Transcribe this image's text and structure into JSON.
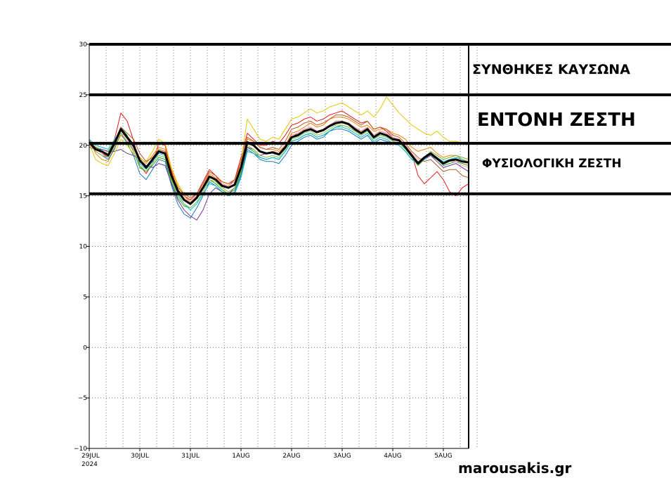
{
  "chart_data": {
    "type": "line",
    "title": "",
    "xlabel": "",
    "ylabel": "",
    "ylim": [
      -10,
      30
    ],
    "yticks": [
      -10,
      -5,
      0,
      5,
      10,
      15,
      20,
      25,
      30
    ],
    "ytick_labels": [
      "−10",
      "−5",
      "0",
      "5",
      "10",
      "15",
      "20",
      "25",
      "30"
    ],
    "xlim": [
      0,
      7.5
    ],
    "x_ticks": [
      {
        "x": 0,
        "label": "29JUL",
        "sub": "2024"
      },
      {
        "x": 1,
        "label": "30JUL",
        "sub": ""
      },
      {
        "x": 2,
        "label": "31JUL",
        "sub": ""
      },
      {
        "x": 3,
        "label": "1AUG",
        "sub": ""
      },
      {
        "x": 4,
        "label": "2AUG",
        "sub": ""
      },
      {
        "x": 5,
        "label": "3AUG",
        "sub": ""
      },
      {
        "x": 6,
        "label": "4AUG",
        "sub": ""
      },
      {
        "x": 7,
        "label": "5AUG",
        "sub": ""
      }
    ],
    "grid": true,
    "zones": [
      {
        "label": "ΣΥΝΘΗΚΕΣ ΚΑΥΣΩΝΑ",
        "from": 25,
        "to": 30
      },
      {
        "label": "ΕΝΤΟΝΗ ΖΕΣΤΗ",
        "from": 20.2,
        "to": 25
      },
      {
        "label": "ΦΥΣΙΟΛΟΓΙΚΗ ΖΕΣΤΗ",
        "from": 15.2,
        "to": 20.2
      }
    ],
    "threshold_lines": [
      30,
      25,
      20.2,
      15.2
    ],
    "series": [
      {
        "name": "ensemble-mean",
        "x": [
          0,
          0.125,
          0.25,
          0.375,
          0.5,
          0.625,
          0.75,
          0.875,
          1.0,
          1.125,
          1.25,
          1.375,
          1.5,
          1.625,
          1.75,
          1.875,
          2.0,
          2.125,
          2.25,
          2.375,
          2.5,
          2.625,
          2.75,
          2.875,
          3.0,
          3.125,
          3.25,
          3.375,
          3.5,
          3.625,
          3.75,
          3.875,
          4.0,
          4.125,
          4.25,
          4.375,
          4.5,
          4.625,
          4.75,
          4.875,
          5.0,
          5.125,
          5.25,
          5.375,
          5.5,
          5.625,
          5.75,
          5.875,
          6.0,
          6.125,
          6.25,
          6.375,
          6.5,
          6.625,
          6.75,
          6.875,
          7.0,
          7.125,
          7.25,
          7.375,
          7.5
        ],
        "values": [
          20.3,
          19.6,
          19.4,
          19.0,
          20.2,
          21.6,
          20.8,
          20.0,
          18.5,
          17.8,
          18.6,
          19.4,
          19.2,
          17.0,
          15.5,
          14.6,
          14.2,
          14.8,
          15.8,
          16.9,
          16.6,
          16.0,
          15.8,
          16.1,
          17.8,
          20.3,
          20.0,
          19.4,
          19.2,
          19.3,
          19.1,
          19.8,
          20.8,
          21.0,
          21.4,
          21.6,
          21.3,
          21.5,
          21.9,
          22.2,
          22.3,
          22.1,
          21.6,
          21.2,
          21.6,
          20.8,
          21.2,
          21.0,
          20.6,
          20.5,
          19.8,
          19.0,
          18.2,
          18.8,
          19.2,
          18.7,
          18.2,
          18.5,
          18.6,
          18.4,
          18.3
        ],
        "color": "#000000",
        "width": 3
      },
      {
        "name": "member-1",
        "color": "#e31a1c",
        "values": [
          20.0,
          19.8,
          19.2,
          18.8,
          20.6,
          23.2,
          22.4,
          20.5,
          18.0,
          17.2,
          18.2,
          20.2,
          20.0,
          17.4,
          15.6,
          15.0,
          14.6,
          15.2,
          16.4,
          17.6,
          17.0,
          16.2,
          16.0,
          16.6,
          18.8,
          21.2,
          20.6,
          20.0,
          20.0,
          20.4,
          20.2,
          21.0,
          22.0,
          22.2,
          22.6,
          22.8,
          22.4,
          22.6,
          23.0,
          23.2,
          23.4,
          23.0,
          22.6,
          22.2,
          22.4,
          21.6,
          21.8,
          21.4,
          20.8,
          20.6,
          20.0,
          19.2,
          17.0,
          16.2,
          16.8,
          17.4,
          16.6,
          15.4,
          15.0,
          15.8,
          16.2
        ]
      },
      {
        "name": "member-2",
        "color": "#ff7f00",
        "values": [
          20.6,
          19.2,
          18.6,
          18.4,
          19.8,
          21.0,
          20.4,
          19.6,
          18.8,
          18.2,
          19.0,
          19.8,
          19.6,
          17.6,
          16.0,
          15.0,
          14.4,
          15.0,
          16.0,
          17.2,
          16.8,
          16.4,
          16.2,
          16.6,
          18.0,
          20.6,
          20.4,
          19.8,
          19.6,
          19.6,
          19.4,
          20.0,
          21.2,
          21.4,
          21.8,
          22.2,
          21.8,
          22.0,
          22.6,
          22.8,
          22.8,
          22.6,
          22.2,
          21.8,
          22.0,
          21.4,
          21.6,
          21.6,
          21.2,
          21.0,
          20.6,
          19.8,
          19.4,
          19.6,
          19.8,
          19.2,
          18.8,
          19.0,
          19.0,
          18.6,
          18.4
        ]
      },
      {
        "name": "member-3",
        "color": "#33a02c",
        "values": [
          20.4,
          19.8,
          19.6,
          19.4,
          20.4,
          21.8,
          21.0,
          19.4,
          17.8,
          17.4,
          18.0,
          18.8,
          18.6,
          16.4,
          14.8,
          14.0,
          13.8,
          14.4,
          15.4,
          16.6,
          16.2,
          15.6,
          15.2,
          15.6,
          17.2,
          19.8,
          19.4,
          18.8,
          18.6,
          18.8,
          18.6,
          19.4,
          20.4,
          20.6,
          21.0,
          21.2,
          20.8,
          21.0,
          21.4,
          21.8,
          22.0,
          21.8,
          21.4,
          21.0,
          21.4,
          20.6,
          21.0,
          20.8,
          20.4,
          20.2,
          19.6,
          18.8,
          18.0,
          18.6,
          19.0,
          18.6,
          18.0,
          18.2,
          18.4,
          18.2,
          18.0
        ]
      },
      {
        "name": "member-4",
        "color": "#1f78b4",
        "values": [
          20.2,
          19.4,
          19.0,
          18.6,
          19.6,
          21.2,
          20.2,
          19.0,
          17.2,
          16.6,
          17.6,
          18.6,
          18.4,
          16.0,
          14.2,
          13.2,
          12.8,
          13.8,
          15.0,
          16.4,
          16.0,
          15.4,
          15.0,
          15.4,
          17.0,
          19.6,
          19.2,
          18.6,
          18.4,
          18.4,
          18.2,
          19.0,
          20.0,
          20.4,
          20.8,
          21.0,
          20.6,
          20.8,
          21.4,
          21.6,
          21.6,
          21.4,
          21.0,
          20.6,
          21.0,
          20.2,
          20.6,
          20.4,
          20.2,
          20.0,
          19.4,
          18.6,
          18.4,
          18.8,
          19.4,
          19.0,
          18.6,
          18.8,
          19.0,
          18.8,
          18.6
        ]
      },
      {
        "name": "member-5",
        "color": "#6a3d9a",
        "values": [
          19.8,
          19.6,
          19.6,
          19.4,
          19.4,
          19.6,
          19.2,
          19.0,
          18.6,
          18.0,
          17.8,
          18.2,
          18.0,
          16.2,
          14.6,
          13.6,
          13.0,
          12.6,
          13.6,
          15.2,
          15.8,
          15.4,
          15.2,
          15.8,
          17.4,
          19.8,
          19.6,
          19.0,
          19.2,
          19.4,
          19.2,
          19.8,
          20.8,
          21.2,
          21.6,
          21.8,
          21.4,
          21.6,
          22.0,
          22.4,
          22.4,
          22.2,
          21.8,
          21.4,
          21.8,
          21.0,
          21.4,
          21.2,
          20.8,
          20.4,
          19.8,
          19.0,
          18.4,
          18.6,
          19.0,
          18.4,
          17.8,
          18.0,
          18.2,
          17.8,
          17.4
        ]
      },
      {
        "name": "member-6",
        "color": "#e6c800",
        "values": [
          20.2,
          18.6,
          18.2,
          18.0,
          19.2,
          20.6,
          20.0,
          19.2,
          18.6,
          18.4,
          19.4,
          20.6,
          20.2,
          17.8,
          16.2,
          15.2,
          14.8,
          15.2,
          16.0,
          17.0,
          16.8,
          16.2,
          16.0,
          16.4,
          18.4,
          22.6,
          21.6,
          20.6,
          20.4,
          20.8,
          20.6,
          21.6,
          22.6,
          22.8,
          23.2,
          23.6,
          23.2,
          23.4,
          23.8,
          24.0,
          24.2,
          23.8,
          23.4,
          23.0,
          23.4,
          22.8,
          23.6,
          24.8,
          24.0,
          23.2,
          22.6,
          22.0,
          21.6,
          21.2,
          21.0,
          21.4,
          20.8,
          20.4,
          20.4,
          20.2,
          20.2
        ]
      },
      {
        "name": "member-7",
        "color": "#b15928",
        "values": [
          20.4,
          19.8,
          19.4,
          19.2,
          20.4,
          21.8,
          21.2,
          20.6,
          19.2,
          18.4,
          18.8,
          19.6,
          19.4,
          17.2,
          15.8,
          15.2,
          14.8,
          15.2,
          16.2,
          17.4,
          17.0,
          16.4,
          16.2,
          16.6,
          18.4,
          20.8,
          20.4,
          19.8,
          19.6,
          19.8,
          19.6,
          20.4,
          21.6,
          21.8,
          22.2,
          22.4,
          22.0,
          22.2,
          22.6,
          23.0,
          23.0,
          22.8,
          22.4,
          22.0,
          22.4,
          21.6,
          21.8,
          21.6,
          21.0,
          20.8,
          20.2,
          19.4,
          18.8,
          18.4,
          18.6,
          18.0,
          17.4,
          17.6,
          17.6,
          17.0,
          16.8
        ]
      },
      {
        "name": "member-8",
        "color": "#00bcd4",
        "values": [
          20.6,
          20.0,
          19.8,
          19.6,
          20.6,
          21.4,
          20.6,
          19.8,
          18.2,
          17.6,
          18.4,
          19.2,
          19.0,
          16.8,
          15.2,
          14.2,
          13.6,
          14.2,
          15.2,
          16.2,
          16.0,
          15.4,
          15.0,
          15.2,
          16.8,
          19.4,
          19.2,
          18.8,
          18.6,
          18.8,
          18.6,
          19.4,
          20.4,
          20.6,
          21.0,
          21.2,
          20.8,
          21.0,
          21.4,
          21.8,
          21.8,
          21.6,
          21.2,
          20.8,
          21.2,
          20.4,
          20.8,
          20.6,
          20.2,
          20.0,
          19.4,
          18.6,
          18.2,
          18.6,
          19.2,
          18.8,
          18.4,
          18.6,
          18.8,
          18.6,
          18.2
        ]
      },
      {
        "name": "member-9",
        "color": "#fb9a99",
        "values": [
          20.0,
          19.6,
          19.2,
          19.0,
          20.0,
          21.4,
          20.6,
          19.6,
          18.4,
          17.8,
          18.6,
          19.4,
          19.2,
          17.0,
          15.6,
          14.8,
          14.4,
          15.0,
          16.0,
          17.0,
          16.8,
          16.2,
          16.0,
          16.4,
          18.0,
          20.4,
          20.0,
          19.4,
          19.2,
          19.4,
          19.2,
          20.0,
          21.0,
          21.2,
          21.6,
          21.8,
          21.4,
          21.6,
          22.0,
          22.4,
          22.4,
          22.2,
          21.8,
          21.4,
          21.8,
          21.0,
          21.4,
          21.2,
          20.8,
          20.6,
          20.0,
          19.2,
          18.6,
          18.8,
          19.2,
          18.8,
          18.2,
          18.4,
          18.4,
          18.0,
          17.8
        ]
      },
      {
        "name": "member-10",
        "color": "#8bc34a",
        "values": [
          20.2,
          19.4,
          19.0,
          18.8,
          19.8,
          21.2,
          20.4,
          19.4,
          18.0,
          17.4,
          18.2,
          19.0,
          18.8,
          16.6,
          15.0,
          14.2,
          13.8,
          14.4,
          15.4,
          16.6,
          16.4,
          15.8,
          15.4,
          15.8,
          17.4,
          20.0,
          19.6,
          19.0,
          18.8,
          19.0,
          18.8,
          19.6,
          20.6,
          20.8,
          21.2,
          21.4,
          21.0,
          21.2,
          21.6,
          22.0,
          22.0,
          21.8,
          21.4,
          21.0,
          21.4,
          20.6,
          21.0,
          20.8,
          20.4,
          20.2,
          19.6,
          18.8,
          18.4,
          18.8,
          19.4,
          19.0,
          18.6,
          18.8,
          19.0,
          18.8,
          18.6
        ]
      }
    ]
  },
  "zone_labels": {
    "heatwave": "ΣΥΝΘΗΚΕΣ ΚΑΥΣΩΝΑ",
    "intense": "ΕΝΤΟΝΗ ΖΕΣΤΗ",
    "normal": "ΦΥΣΙΟΛΟΓΙΚΗ ΖΕΣΤΗ"
  },
  "brand": "marousakis.gr"
}
